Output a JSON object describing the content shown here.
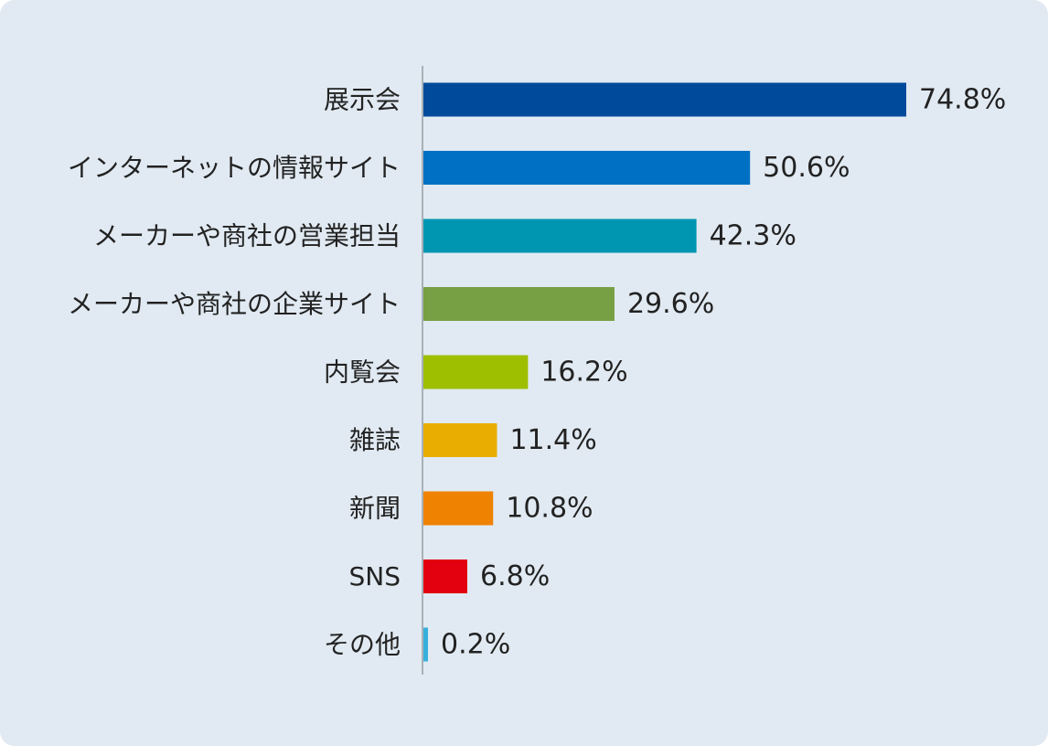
{
  "chart_data": {
    "type": "bar",
    "orientation": "horizontal",
    "categories": [
      "展示会",
      "インターネットの情報サイト",
      "メーカーや商社の営業担当",
      "メーカーや商社の企業サイト",
      "内覧会",
      "雑誌",
      "新聞",
      "SNS",
      "その他"
    ],
    "values": [
      74.8,
      50.6,
      42.3,
      29.6,
      16.2,
      11.4,
      10.8,
      6.8,
      0.2
    ],
    "value_labels": [
      "74.8%",
      "50.6%",
      "42.3%",
      "29.6%",
      "16.2%",
      "11.4%",
      "10.8%",
      "6.8%",
      "0.2%"
    ],
    "colors": [
      "#004a9c",
      "#0070c4",
      "#0096b2",
      "#76a043",
      "#9dbf00",
      "#e8ad00",
      "#ef8200",
      "#e3000f",
      "#35b0dc"
    ],
    "unit": "%",
    "xlim": [
      0,
      100
    ],
    "grid": false,
    "legend": "none",
    "title": "",
    "xlabel": "",
    "ylabel": ""
  }
}
